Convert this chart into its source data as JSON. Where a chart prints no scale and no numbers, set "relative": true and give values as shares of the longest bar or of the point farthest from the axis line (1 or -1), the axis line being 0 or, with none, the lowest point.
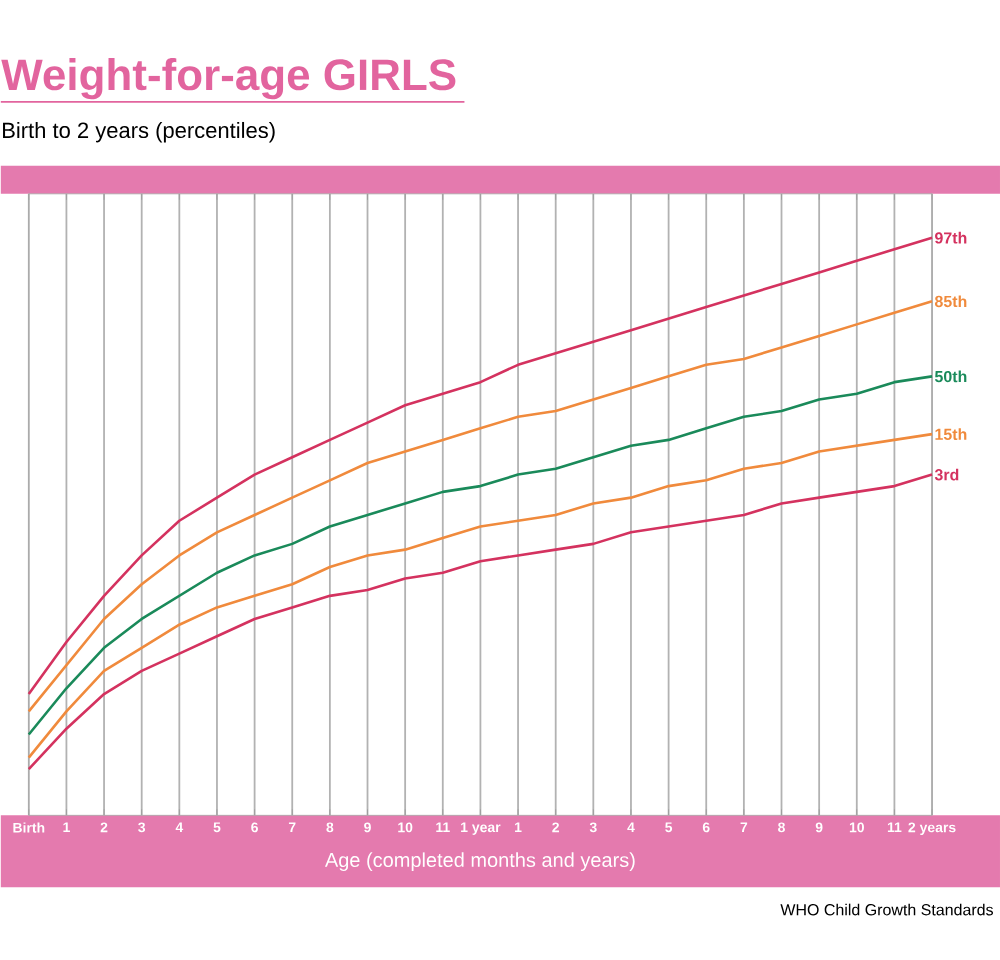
{
  "chart_data": {
    "type": "line",
    "title": "Weight-for-age GIRLS",
    "subtitle": "Birth to 2 years (percentiles)",
    "xlabel": "Age (completed months and years)",
    "annotations": [
      "WHO Child Growth Standards"
    ],
    "relative": true,
    "grid": "x",
    "legend": false,
    "marker": "none",
    "line_style": "solid",
    "categories": [
      "Birth",
      "1",
      "2",
      "3",
      "4",
      "5",
      "6",
      "7",
      "8",
      "9",
      "10",
      "11",
      "1 year",
      "1",
      "2",
      "3",
      "4",
      "5",
      "6",
      "7",
      "8",
      "9",
      "10",
      "11",
      "2 years"
    ],
    "series": [
      {
        "name": "97th",
        "color": "#d4325f",
        "values": [
          0.21,
          0.3,
          0.38,
          0.45,
          0.51,
          0.55,
          0.59,
          0.62,
          0.65,
          0.68,
          0.71,
          0.73,
          0.75,
          0.78,
          0.8,
          0.82,
          0.84,
          0.86,
          0.88,
          0.9,
          0.92,
          0.94,
          0.96,
          0.98,
          1.0
        ]
      },
      {
        "name": "85th",
        "color": "#f08a3c",
        "values": [
          0.18,
          0.26,
          0.34,
          0.4,
          0.45,
          0.49,
          0.52,
          0.55,
          0.58,
          0.61,
          0.63,
          0.65,
          0.67,
          0.69,
          0.7,
          0.72,
          0.74,
          0.76,
          0.78,
          0.79,
          0.81,
          0.83,
          0.85,
          0.87,
          0.89
        ]
      },
      {
        "name": "50th",
        "color": "#1a8a5a",
        "values": [
          0.14,
          0.22,
          0.29,
          0.34,
          0.38,
          0.42,
          0.45,
          0.47,
          0.5,
          0.52,
          0.54,
          0.56,
          0.57,
          0.59,
          0.6,
          0.62,
          0.64,
          0.65,
          0.67,
          0.69,
          0.7,
          0.72,
          0.73,
          0.75,
          0.76
        ]
      },
      {
        "name": "15th",
        "color": "#f08a3c",
        "values": [
          0.1,
          0.18,
          0.25,
          0.29,
          0.33,
          0.36,
          0.38,
          0.4,
          0.43,
          0.45,
          0.46,
          0.48,
          0.5,
          0.51,
          0.52,
          0.54,
          0.55,
          0.57,
          0.58,
          0.6,
          0.61,
          0.63,
          0.64,
          0.65,
          0.66
        ]
      },
      {
        "name": "3rd",
        "color": "#d4325f",
        "values": [
          0.08,
          0.15,
          0.21,
          0.25,
          0.28,
          0.31,
          0.34,
          0.36,
          0.38,
          0.39,
          0.41,
          0.42,
          0.44,
          0.45,
          0.46,
          0.47,
          0.49,
          0.5,
          0.51,
          0.52,
          0.54,
          0.55,
          0.56,
          0.57,
          0.59
        ]
      }
    ]
  }
}
